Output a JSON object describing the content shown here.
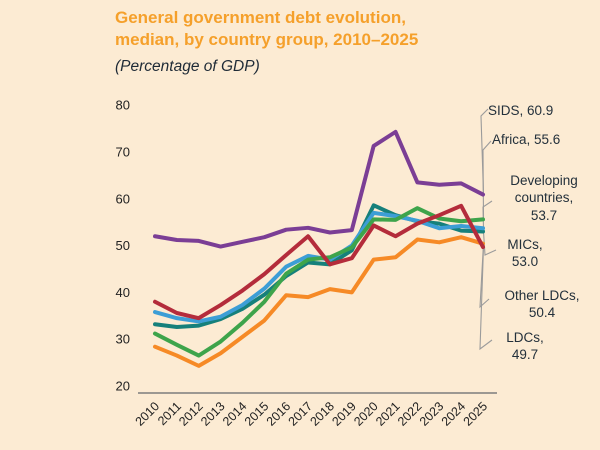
{
  "header": {
    "title_line1": "General government debt evolution,",
    "title_line2": "median, by country group, 2010–2025",
    "subtitle": "(Percentage of GDP)"
  },
  "colors": {
    "background": "#FCEBD3",
    "title_orange": "#F5A02B",
    "text_dark": "#23303B",
    "axis_line": "#7D7D7D",
    "leader_line": "#9B9B9B"
  },
  "chart_data": {
    "type": "line",
    "title": "General government debt evolution, median, by country group, 2010–2025",
    "subtitle": "(Percentage of GDP)",
    "x": [
      2010,
      2011,
      2012,
      2013,
      2014,
      2015,
      2016,
      2017,
      2018,
      2019,
      2020,
      2021,
      2022,
      2023,
      2024,
      2025
    ],
    "ylim": [
      20,
      80
    ],
    "yticks": [
      20,
      30,
      40,
      50,
      60,
      70,
      80
    ],
    "grid": false,
    "legend": "end-of-line callouts, right side",
    "series": [
      {
        "name": "SIDS",
        "color": "#7B3E95",
        "end_value": 60.9,
        "callout": "SIDS, 60.9",
        "values": [
          52.0,
          51.2,
          51.0,
          49.8,
          50.8,
          51.8,
          53.4,
          53.8,
          52.8,
          53.3,
          71.3,
          74.3,
          63.5,
          63.0,
          63.3,
          60.9
        ]
      },
      {
        "name": "Africa",
        "color": "#3EA44B",
        "end_value": 55.6,
        "callout": "Africa, 55.6",
        "values": [
          31.2,
          28.8,
          26.5,
          29.5,
          33.5,
          38.0,
          44.0,
          47.0,
          47.5,
          49.6,
          55.6,
          55.5,
          58.0,
          55.8,
          55.2,
          55.6
        ]
      },
      {
        "name": "Developing countries",
        "color": "#3D9ED6",
        "end_value": 53.7,
        "callout": "Developing\ncountries,\n53.7",
        "values": [
          35.8,
          34.5,
          33.8,
          34.8,
          37.3,
          40.8,
          45.5,
          47.8,
          47.0,
          50.0,
          57.0,
          56.3,
          55.3,
          53.7,
          54.2,
          53.7
        ]
      },
      {
        "name": "MICs",
        "color": "#16807B",
        "end_value": 53.0,
        "callout": "MICs,\n53.0",
        "values": [
          33.2,
          32.6,
          32.9,
          34.3,
          36.5,
          39.5,
          43.5,
          46.4,
          46.0,
          49.0,
          58.6,
          56.5,
          55.2,
          54.7,
          53.2,
          53.0
        ]
      },
      {
        "name": "Other LDCs",
        "color": "#F68A26",
        "end_value": 50.4,
        "callout": "Other LDCs,\n50.4",
        "values": [
          28.4,
          26.5,
          24.3,
          27.0,
          30.5,
          34.0,
          39.4,
          39.0,
          40.7,
          40.0,
          47.0,
          47.5,
          51.3,
          50.7,
          51.8,
          50.4
        ]
      },
      {
        "name": "LDCs",
        "color": "#B42C3B",
        "end_value": 49.7,
        "callout": "LDCs,\n49.7",
        "values": [
          38.0,
          35.6,
          34.5,
          37.3,
          40.4,
          43.9,
          48.0,
          52.0,
          46.0,
          47.3,
          54.3,
          52.0,
          54.7,
          56.5,
          58.5,
          49.7
        ]
      }
    ]
  }
}
